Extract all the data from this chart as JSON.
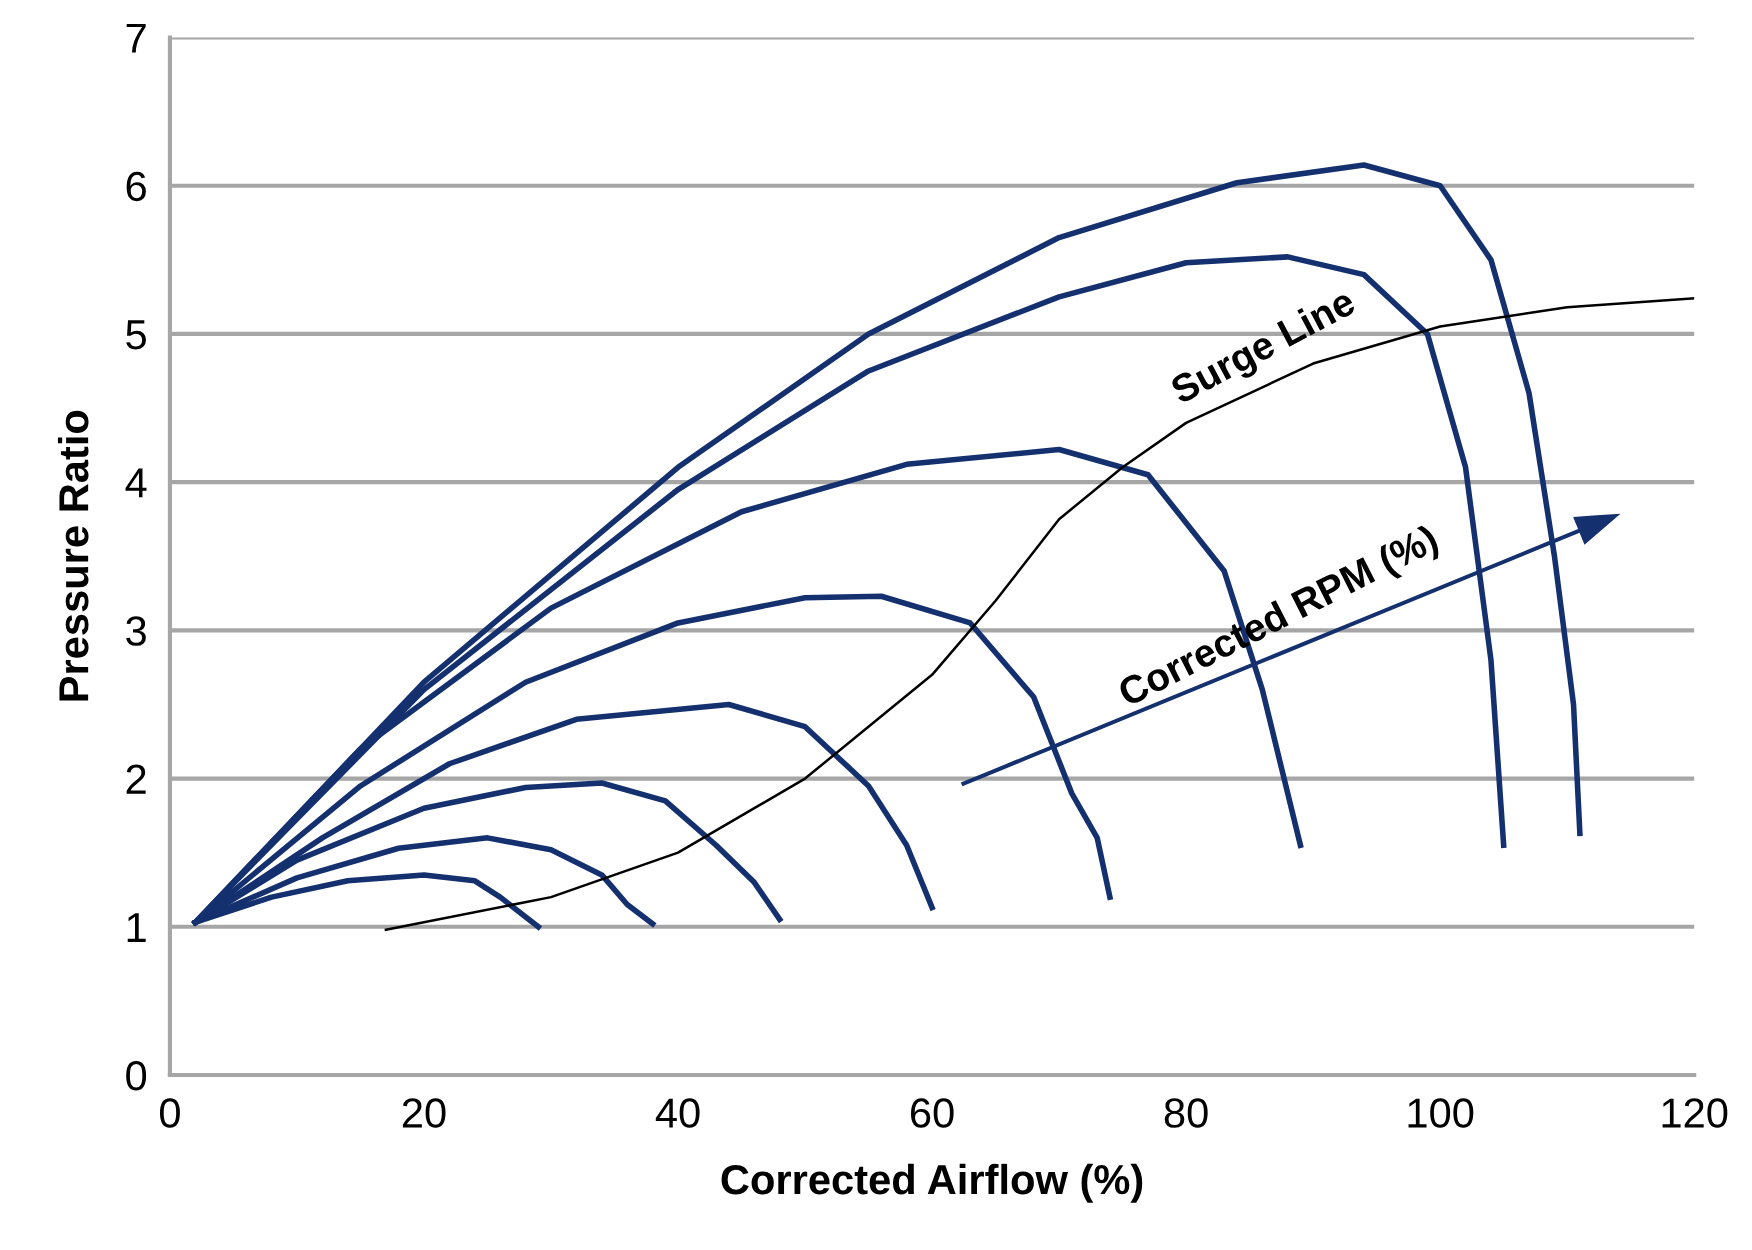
{
  "chart_data": {
    "type": "line",
    "xlabel": "Corrected Airflow (%)",
    "ylabel": "Pressure Ratio",
    "xlim": [
      0,
      120
    ],
    "xticks": [
      0,
      20,
      40,
      60,
      80,
      100,
      120
    ],
    "ylim": [
      0,
      7
    ],
    "yticks": [
      0,
      1,
      2,
      3,
      4,
      5,
      6,
      7
    ],
    "grid": "y",
    "series": [
      {
        "color": "#14306e",
        "x": [
          2,
          8,
          14,
          20,
          24,
          26,
          29
        ],
        "values": [
          1.03,
          1.2,
          1.31,
          1.35,
          1.31,
          1.2,
          1.0
        ]
      },
      {
        "color": "#14306e",
        "x": [
          2,
          10,
          18,
          25,
          30,
          34,
          36,
          38
        ],
        "values": [
          1.03,
          1.33,
          1.53,
          1.6,
          1.52,
          1.35,
          1.15,
          1.02
        ]
      },
      {
        "color": "#14306e",
        "x": [
          2,
          10,
          20,
          28,
          34,
          39,
          43,
          46,
          48
        ],
        "values": [
          1.03,
          1.45,
          1.8,
          1.94,
          1.97,
          1.85,
          1.55,
          1.3,
          1.05
        ]
      },
      {
        "color": "#14306e",
        "x": [
          2,
          12,
          22,
          32,
          44,
          50,
          55,
          58,
          60
        ],
        "values": [
          1.03,
          1.6,
          2.1,
          2.4,
          2.5,
          2.35,
          1.95,
          1.55,
          1.13
        ]
      },
      {
        "color": "#14306e",
        "x": [
          2,
          15,
          28,
          40,
          50,
          56,
          63,
          68,
          71,
          73,
          74
        ],
        "values": [
          1.03,
          1.95,
          2.65,
          3.05,
          3.22,
          3.23,
          3.05,
          2.55,
          1.9,
          1.6,
          1.2
        ]
      },
      {
        "color": "#14306e",
        "x": [
          2,
          15,
          30,
          45,
          58,
          70,
          77,
          83,
          86,
          88,
          89
        ],
        "values": [
          1.03,
          2.2,
          3.15,
          3.8,
          4.12,
          4.22,
          4.05,
          3.4,
          2.6,
          1.9,
          1.55
        ]
      },
      {
        "color": "#14306e",
        "x": [
          2,
          20,
          40,
          55,
          70,
          80,
          88,
          94,
          99,
          102,
          104,
          105
        ],
        "values": [
          1.03,
          2.6,
          3.95,
          4.75,
          5.25,
          5.48,
          5.52,
          5.4,
          5.0,
          4.1,
          2.8,
          1.55
        ]
      },
      {
        "color": "#14306e",
        "x": [
          2,
          20,
          40,
          55,
          70,
          84,
          94,
          100,
          104,
          107,
          109,
          110.5,
          111
        ],
        "values": [
          1.03,
          2.65,
          4.1,
          5.0,
          5.65,
          6.02,
          6.14,
          6.0,
          5.5,
          4.6,
          3.5,
          2.5,
          1.63
        ]
      },
      {
        "color": "#000000",
        "x": [
          17,
          30,
          40,
          50,
          60,
          65,
          70,
          75,
          80,
          90,
          100,
          110,
          120
        ],
        "values": [
          0.98,
          1.2,
          1.5,
          2.0,
          2.7,
          3.2,
          3.75,
          4.1,
          4.4,
          4.8,
          5.05,
          5.18,
          5.24
        ]
      }
    ],
    "annotations": [
      "Surge Line",
      "Corrected RPM (%)"
    ]
  }
}
